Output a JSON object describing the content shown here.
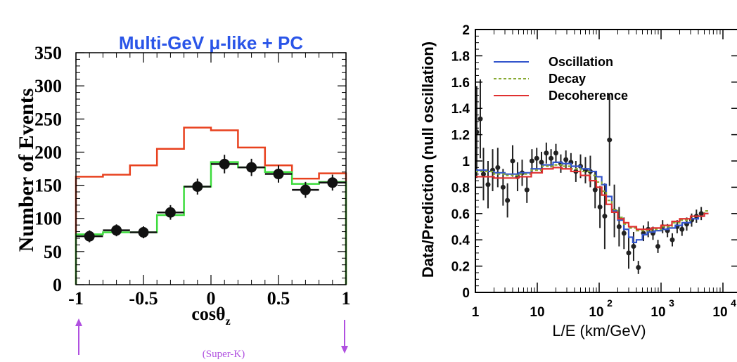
{
  "chart_data": [
    {
      "type": "line",
      "title": "Multi-GeV μ-like + PC",
      "xlabel": "cosθz",
      "ylabel": "Number of Events",
      "xlim": [
        -1,
        1
      ],
      "ylim": [
        0,
        350
      ],
      "x_ticks": [
        "-1",
        "-0.5",
        "0",
        "0.5",
        "1"
      ],
      "y_ticks": [
        "0",
        "50",
        "100",
        "150",
        "200",
        "250",
        "300",
        "350"
      ],
      "bin_edges": [
        -1.0,
        -0.8,
        -0.6,
        -0.4,
        -0.2,
        0.0,
        0.2,
        0.4,
        0.6,
        0.8,
        1.0
      ],
      "series": [
        {
          "values": [
            163,
            166,
            180,
            205,
            237,
            233,
            207,
            180,
            160,
            168
          ],
          "color": "#e8411e"
        },
        {
          "values": [
            76,
            79,
            79,
            105,
            148,
            185,
            177,
            170,
            152,
            155
          ],
          "color": "#3ddc3d"
        }
      ],
      "points": {
        "x": [
          -0.9,
          -0.7,
          -0.5,
          -0.3,
          -0.1,
          0.1,
          0.3,
          0.5,
          0.7,
          0.9
        ],
        "y": [
          73,
          82,
          79,
          109,
          148,
          182,
          177,
          167,
          143,
          154
        ],
        "yerr": [
          9,
          9,
          9,
          11,
          12,
          14,
          13,
          13,
          12,
          12
        ],
        "color": "#111111"
      },
      "annotations": [
        "(Super-K)"
      ],
      "arrow_color": "#b050e0",
      "title_color": "#2a55e8"
    },
    {
      "type": "line",
      "xlabel": "L/E (km/GeV)",
      "ylabel": "Data/Prediction (null oscillation)",
      "x_scale": "log",
      "xlim": [
        1,
        5000
      ],
      "ylim": [
        0,
        2
      ],
      "x_ticks": [
        "1",
        "10",
        "10",
        "10",
        "10"
      ],
      "x_tick_exponents": [
        "",
        "",
        "2",
        "3",
        "4"
      ],
      "y_ticks": [
        "0",
        "0.2",
        "0.4",
        "0.6",
        "0.8",
        "1",
        "1.2",
        "1.4",
        "1.6",
        "1.8",
        "2"
      ],
      "legend_position": "top-left",
      "series": [
        {
          "name": "Oscillation",
          "color": "#3355cc",
          "x": [
            1,
            1.5,
            2,
            3,
            5,
            8,
            12,
            18,
            25,
            35,
            50,
            70,
            90,
            110,
            130,
            160,
            200,
            250,
            300,
            350,
            400,
            500,
            600,
            800,
            1000,
            1300,
            1700,
            2200,
            3000,
            4000,
            5000
          ],
          "y": [
            0.93,
            0.92,
            0.91,
            0.9,
            0.91,
            0.94,
            0.97,
            0.99,
            0.98,
            0.96,
            0.94,
            0.92,
            0.88,
            0.82,
            0.73,
            0.62,
            0.55,
            0.48,
            0.42,
            0.38,
            0.4,
            0.44,
            0.46,
            0.47,
            0.48,
            0.49,
            0.51,
            0.53,
            0.56,
            0.58,
            0.6
          ]
        },
        {
          "name": "Decay",
          "color": "#88aa33",
          "x": [
            1,
            2,
            3,
            5,
            8,
            12,
            18,
            25,
            35,
            50,
            70,
            90,
            110,
            130,
            160,
            200,
            250,
            300,
            400,
            500,
            700,
            1000,
            1500,
            2000,
            3000,
            5000
          ],
          "y": [
            0.92,
            0.9,
            0.89,
            0.9,
            0.93,
            0.96,
            0.97,
            0.96,
            0.94,
            0.92,
            0.89,
            0.84,
            0.77,
            0.7,
            0.63,
            0.57,
            0.52,
            0.49,
            0.47,
            0.47,
            0.48,
            0.5,
            0.53,
            0.55,
            0.58,
            0.62
          ]
        },
        {
          "name": "Decoherence",
          "color": "#e03030",
          "x": [
            1,
            2,
            3,
            5,
            8,
            12,
            18,
            25,
            35,
            50,
            70,
            90,
            110,
            130,
            160,
            200,
            250,
            300,
            400,
            500,
            700,
            1000,
            1500,
            2000,
            3000,
            5000
          ],
          "y": [
            0.88,
            0.87,
            0.87,
            0.88,
            0.91,
            0.94,
            0.95,
            0.94,
            0.92,
            0.89,
            0.85,
            0.8,
            0.74,
            0.67,
            0.61,
            0.56,
            0.53,
            0.5,
            0.48,
            0.48,
            0.49,
            0.51,
            0.54,
            0.56,
            0.58,
            0.6
          ]
        }
      ],
      "points": {
        "x": [
          1.05,
          1.2,
          1.35,
          1.6,
          1.9,
          2.3,
          2.8,
          3.3,
          4,
          4.8,
          5.7,
          6.8,
          8.2,
          9.8,
          11.7,
          14,
          16.7,
          20,
          24,
          29,
          35,
          42,
          50,
          60,
          72,
          86,
          103,
          123,
          147,
          176,
          210,
          252,
          300,
          360,
          430,
          520,
          620,
          740,
          890,
          1060,
          1270,
          1520,
          1820,
          2180,
          2600,
          3120,
          3730,
          4460
        ],
        "y": [
          1.22,
          1.32,
          0.9,
          0.82,
          0.93,
          0.95,
          0.8,
          0.7,
          1.0,
          0.88,
          0.91,
          0.78,
          1.0,
          1.02,
          0.99,
          1.06,
          1.02,
          1.06,
          0.98,
          1.01,
          0.99,
          0.92,
          0.96,
          0.93,
          0.92,
          0.78,
          0.65,
          0.58,
          1.16,
          0.62,
          0.5,
          0.45,
          0.3,
          0.35,
          0.19,
          0.45,
          0.48,
          0.45,
          0.35,
          0.5,
          0.47,
          0.4,
          0.5,
          0.48,
          0.52,
          0.55,
          0.58,
          0.6
        ],
        "yerr": [
          0.35,
          0.3,
          0.2,
          0.18,
          0.16,
          0.15,
          0.14,
          0.13,
          0.12,
          0.11,
          0.1,
          0.1,
          0.09,
          0.08,
          0.08,
          0.08,
          0.07,
          0.07,
          0.07,
          0.07,
          0.07,
          0.08,
          0.09,
          0.1,
          0.12,
          0.14,
          0.16,
          0.25,
          0.35,
          0.2,
          0.15,
          0.12,
          0.12,
          0.11,
          0.05,
          0.06,
          0.06,
          0.05,
          0.05,
          0.05,
          0.05,
          0.05,
          0.05,
          0.05,
          0.05,
          0.05,
          0.05,
          0.05
        ],
        "color": "#222222"
      }
    }
  ]
}
